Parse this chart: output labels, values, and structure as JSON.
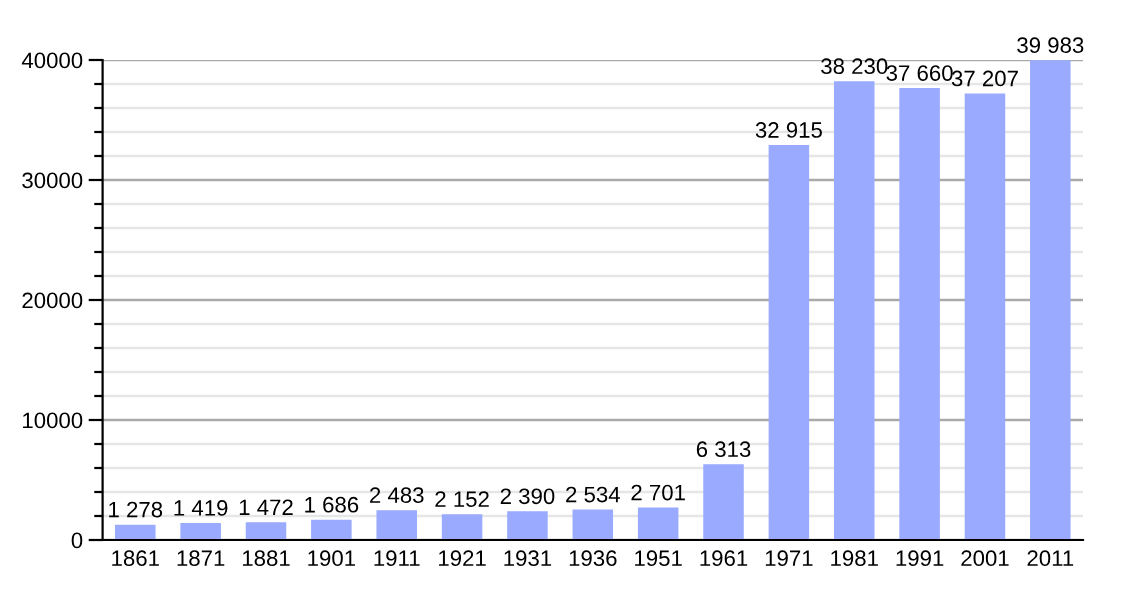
{
  "chart_data": {
    "type": "bar",
    "categories": [
      "1861",
      "1871",
      "1881",
      "1901",
      "1911",
      "1921",
      "1931",
      "1936",
      "1951",
      "1961",
      "1971",
      "1981",
      "1991",
      "2001",
      "2011"
    ],
    "values": [
      1278,
      1419,
      1472,
      1686,
      2483,
      2152,
      2390,
      2534,
      2701,
      6313,
      32915,
      38230,
      37660,
      37207,
      39983
    ],
    "value_labels": [
      "1 278",
      "1 419",
      "1 472",
      "1 686",
      "2 483",
      "2 152",
      "2 390",
      "2 534",
      "2 701",
      "6 313",
      "32 915",
      "38 230",
      "37 660",
      "37 207",
      "39 983"
    ],
    "color": "#99aaff",
    "ylim": [
      0,
      40000
    ],
    "yticks": [
      0,
      {
        "value": 2000,
        "label": null
      },
      {
        "value": 4000,
        "label": null
      },
      {
        "value": 6000,
        "label": null
      },
      {
        "value": 8000,
        "label": null
      },
      10000,
      {
        "value": 12000,
        "label": null
      },
      {
        "value": 14000,
        "label": null
      },
      {
        "value": 16000,
        "label": null
      },
      {
        "value": 18000,
        "label": null
      },
      20000,
      {
        "value": 22000,
        "label": null
      },
      {
        "value": 24000,
        "label": null
      },
      {
        "value": 26000,
        "label": null
      },
      {
        "value": 28000,
        "label": null
      },
      30000,
      {
        "value": 32000,
        "label": null
      },
      {
        "value": 34000,
        "label": null
      },
      {
        "value": 36000,
        "label": null
      },
      {
        "value": 38000,
        "label": null
      },
      40000
    ],
    "grid": "y"
  }
}
